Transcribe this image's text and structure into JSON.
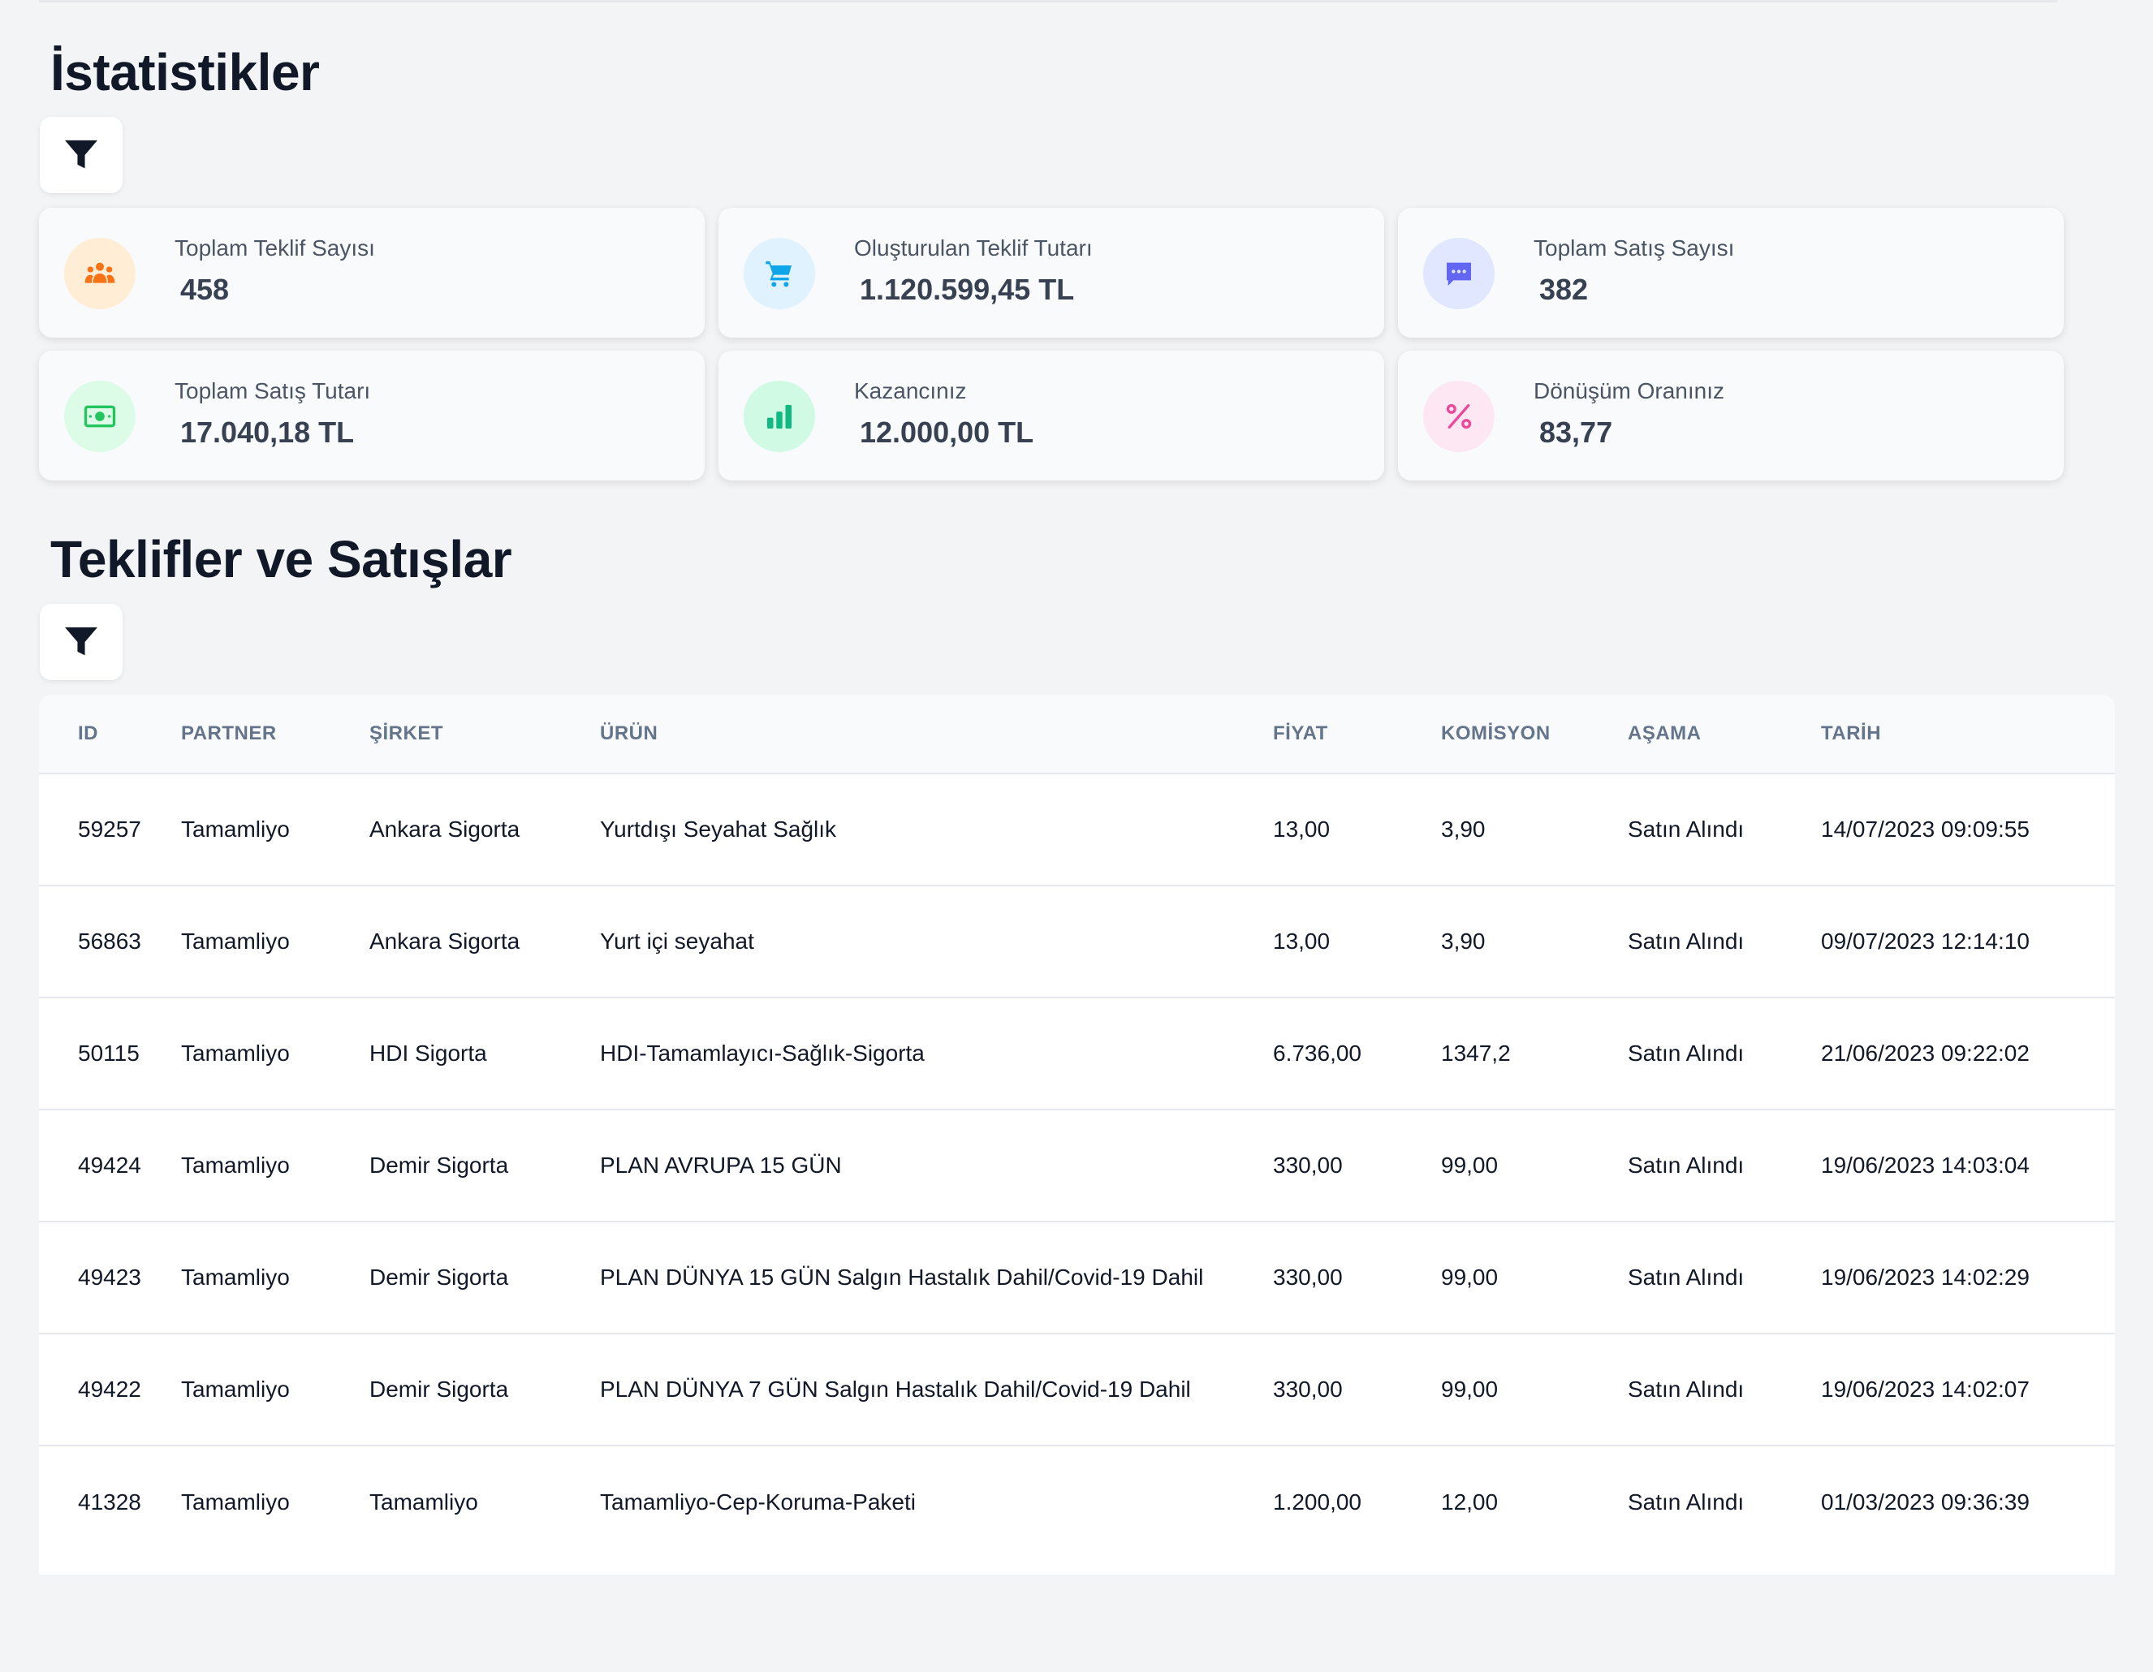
{
  "statistics": {
    "title": "İstatistikler",
    "cards": [
      {
        "label": "Toplam Teklif Sayısı",
        "value": "458",
        "icon": "users-icon",
        "color": "#f97316",
        "bg": "#ffedd5"
      },
      {
        "label": "Oluşturulan Teklif Tutarı",
        "value": "1.120.599,45 TL",
        "icon": "cart-icon",
        "color": "#0ea5e9",
        "bg": "#e0f2fe"
      },
      {
        "label": "Toplam Satış Sayısı",
        "value": "382",
        "icon": "chat-icon",
        "color": "#6366f1",
        "bg": "#e0e7ff"
      },
      {
        "label": "Toplam Satış Tutarı",
        "value": "17.040,18 TL",
        "icon": "money-icon",
        "color": "#22c55e",
        "bg": "#dcfce7"
      },
      {
        "label": "Kazancınız",
        "value": "12.000,00 TL",
        "icon": "bar-chart-icon",
        "color": "#10b981",
        "bg": "#d1fae5"
      },
      {
        "label": "Dönüşüm Oranınız",
        "value": "83,77",
        "icon": "percent-icon",
        "color": "#ec4899",
        "bg": "#fce7f3"
      }
    ]
  },
  "offers": {
    "title": "Teklifler ve Satışlar",
    "columns": [
      "ID",
      "PARTNER",
      "ŞİRKET",
      "ÜRÜN",
      "FİYAT",
      "KOMİSYON",
      "AŞAMA",
      "TARİH"
    ],
    "rows": [
      [
        "59257",
        "Tamamliyo",
        "Ankara Sigorta",
        "Yurtdışı Seyahat Sağlık",
        "13,00",
        "3,90",
        "Satın Alındı",
        "14/07/2023 09:09:55"
      ],
      [
        "56863",
        "Tamamliyo",
        "Ankara Sigorta",
        "Yurt içi seyahat",
        "13,00",
        "3,90",
        "Satın Alındı",
        "09/07/2023 12:14:10"
      ],
      [
        "50115",
        "Tamamliyo",
        "HDI Sigorta",
        "HDI-Tamamlayıcı-Sağlık-Sigorta",
        "6.736,00",
        "1347,2",
        "Satın Alındı",
        "21/06/2023 09:22:02"
      ],
      [
        "49424",
        "Tamamliyo",
        "Demir Sigorta",
        "PLAN AVRUPA 15 GÜN",
        "330,00",
        "99,00",
        "Satın Alındı",
        "19/06/2023 14:03:04"
      ],
      [
        "49423",
        "Tamamliyo",
        "Demir Sigorta",
        "PLAN DÜNYA 15 GÜN Salgın Hastalık Dahil/Covid-19 Dahil",
        "330,00",
        "99,00",
        "Satın Alındı",
        "19/06/2023 14:02:29"
      ],
      [
        "49422",
        "Tamamliyo",
        "Demir Sigorta",
        "PLAN DÜNYA 7 GÜN Salgın Hastalık Dahil/Covid-19 Dahil",
        "330,00",
        "99,00",
        "Satın Alındı",
        "19/06/2023 14:02:07"
      ],
      [
        "41328",
        "Tamamliyo",
        "Tamamliyo",
        "Tamamliyo-Cep-Koruma-Paketi",
        "1.200,00",
        "12,00",
        "Satın Alındı",
        "01/03/2023 09:36:39"
      ]
    ]
  }
}
